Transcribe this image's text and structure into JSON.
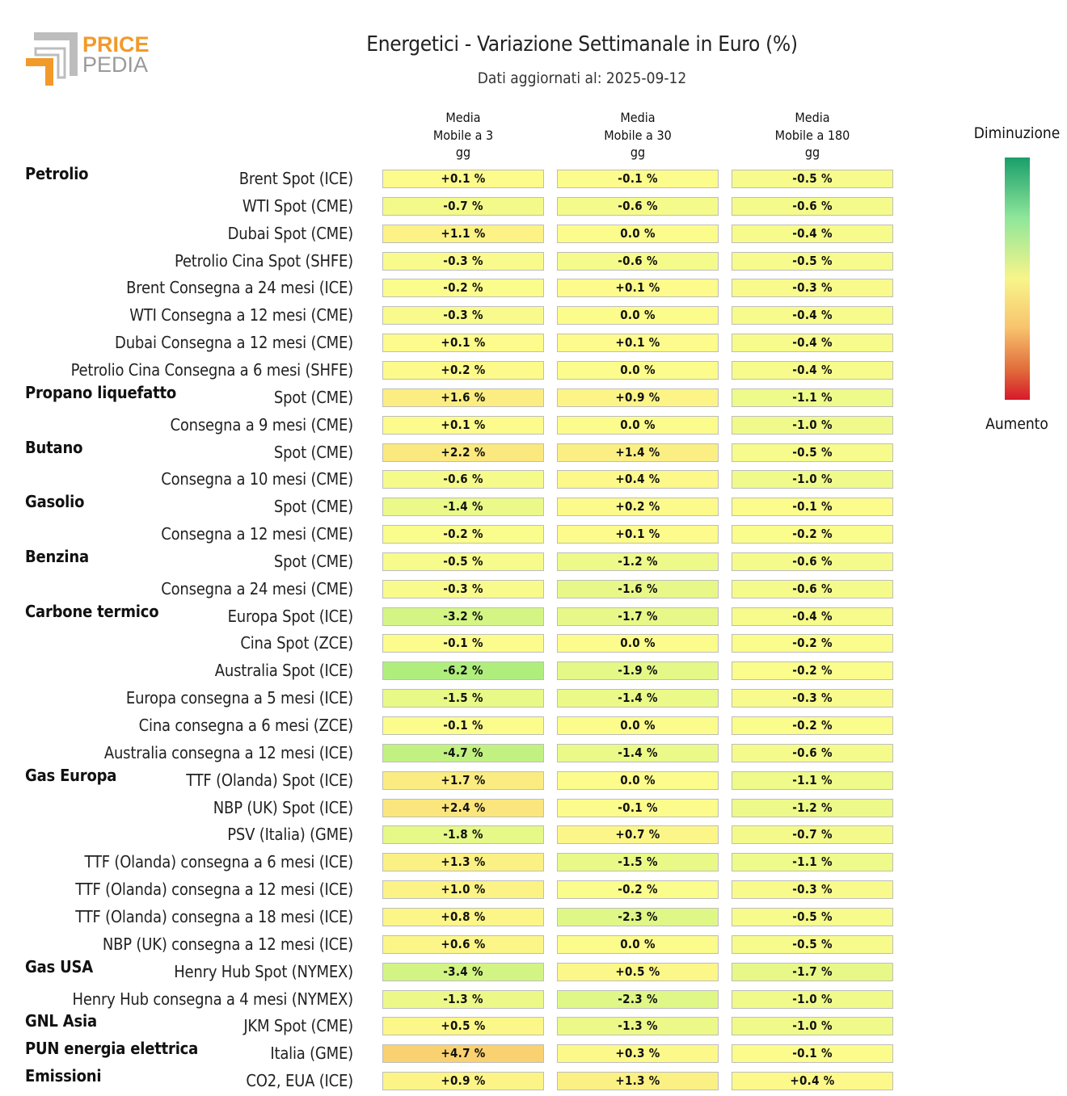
{
  "logo": {
    "line1": "PRICE",
    "line2": "PEDIA",
    "colors": {
      "orange": "#f19a2a",
      "gray": "#999999"
    }
  },
  "chart_data": {
    "type": "table",
    "title": "Energetici - Variazione Settimanale in Euro (%)",
    "subtitle": "Dati aggiornati al: 2025-09-12",
    "columns": [
      "Media\nMobile a 3\ngg",
      "Media\nMobile a 30\ngg",
      "Media\nMobile a 180\ngg"
    ],
    "legend": {
      "top": "Diminuzione",
      "bottom": "Aumento",
      "colors": [
        "#1a9e6a",
        "#8fe69a",
        "#f7f58a",
        "#f8c46e",
        "#e06a3a",
        "#d7192a"
      ]
    },
    "rows": [
      {
        "group": "Petrolio",
        "label": "Brent Spot (ICE)",
        "values": [
          0.1,
          -0.1,
          -0.5
        ]
      },
      {
        "group": "",
        "label": "WTI Spot (CME)",
        "values": [
          -0.7,
          -0.6,
          -0.6
        ]
      },
      {
        "group": "",
        "label": "Dubai Spot (CME)",
        "values": [
          1.1,
          0.0,
          -0.4
        ]
      },
      {
        "group": "",
        "label": "Petrolio Cina Spot (SHFE)",
        "values": [
          -0.3,
          -0.6,
          -0.5
        ]
      },
      {
        "group": "",
        "label": "Brent Consegna a 24 mesi (ICE)",
        "values": [
          -0.2,
          0.1,
          -0.3
        ]
      },
      {
        "group": "",
        "label": "WTI Consegna a 12 mesi (CME)",
        "values": [
          -0.3,
          0.0,
          -0.4
        ]
      },
      {
        "group": "",
        "label": "Dubai Consegna a 12 mesi (CME)",
        "values": [
          0.1,
          0.1,
          -0.4
        ]
      },
      {
        "group": "",
        "label": "Petrolio Cina Consegna a 6 mesi (SHFE)",
        "values": [
          0.2,
          0.0,
          -0.4
        ]
      },
      {
        "group": "Propano liquefatto",
        "label": "Spot (CME)",
        "values": [
          1.6,
          0.9,
          -1.1
        ]
      },
      {
        "group": "",
        "label": "Consegna a 9 mesi (CME)",
        "values": [
          0.1,
          0.0,
          -1.0
        ]
      },
      {
        "group": "Butano",
        "label": "Spot (CME)",
        "values": [
          2.2,
          1.4,
          -0.5
        ]
      },
      {
        "group": "",
        "label": "Consegna a 10 mesi (CME)",
        "values": [
          -0.6,
          0.4,
          -1.0
        ]
      },
      {
        "group": "Gasolio",
        "label": "Spot (CME)",
        "values": [
          -1.4,
          0.2,
          -0.1
        ]
      },
      {
        "group": "",
        "label": "Consegna a 12 mesi (CME)",
        "values": [
          -0.2,
          0.1,
          -0.2
        ]
      },
      {
        "group": "Benzina",
        "label": "Spot (CME)",
        "values": [
          -0.5,
          -1.2,
          -0.6
        ]
      },
      {
        "group": "",
        "label": "Consegna a 24 mesi (CME)",
        "values": [
          -0.3,
          -1.6,
          -0.6
        ]
      },
      {
        "group": "Carbone termico",
        "label": "Europa Spot (ICE)",
        "values": [
          -3.2,
          -1.7,
          -0.4
        ]
      },
      {
        "group": "",
        "label": "Cina Spot (ZCE)",
        "values": [
          -0.1,
          0.0,
          -0.2
        ]
      },
      {
        "group": "",
        "label": "Australia Spot (ICE)",
        "values": [
          -6.2,
          -1.9,
          -0.2
        ]
      },
      {
        "group": "",
        "label": "Europa consegna a 5 mesi (ICE)",
        "values": [
          -1.5,
          -1.4,
          -0.3
        ]
      },
      {
        "group": "",
        "label": "Cina consegna a 6 mesi (ZCE)",
        "values": [
          -0.1,
          0.0,
          -0.2
        ]
      },
      {
        "group": "",
        "label": "Australia consegna a 12 mesi (ICE)",
        "values": [
          -4.7,
          -1.4,
          -0.6
        ]
      },
      {
        "group": "Gas Europa",
        "label": "TTF (Olanda) Spot (ICE)",
        "values": [
          1.7,
          0.0,
          -1.1
        ]
      },
      {
        "group": "",
        "label": "NBP (UK) Spot (ICE)",
        "values": [
          2.4,
          -0.1,
          -1.2
        ]
      },
      {
        "group": "",
        "label": "PSV (Italia) (GME)",
        "values": [
          -1.8,
          0.7,
          -0.7
        ]
      },
      {
        "group": "",
        "label": "TTF (Olanda) consegna a 6 mesi (ICE)",
        "values": [
          1.3,
          -1.5,
          -1.1
        ]
      },
      {
        "group": "",
        "label": "TTF (Olanda) consegna a 12 mesi (ICE)",
        "values": [
          1.0,
          -0.2,
          -0.3
        ]
      },
      {
        "group": "",
        "label": "TTF (Olanda) consegna a 18 mesi (ICE)",
        "values": [
          0.8,
          -2.3,
          -0.5
        ]
      },
      {
        "group": "",
        "label": "NBP (UK) consegna a 12 mesi (ICE)",
        "values": [
          0.6,
          0.0,
          -0.5
        ]
      },
      {
        "group": "Gas USA",
        "label": "Henry Hub Spot (NYMEX)",
        "values": [
          -3.4,
          0.5,
          -1.7
        ]
      },
      {
        "group": "",
        "label": "Henry Hub consegna a 4 mesi (NYMEX)",
        "values": [
          -1.3,
          -2.3,
          -1.0
        ]
      },
      {
        "group": "GNL Asia",
        "label": "JKM Spot (CME)",
        "values": [
          0.5,
          -1.3,
          -1.0
        ]
      },
      {
        "group": "PUN energia elettrica",
        "label": "Italia (GME)",
        "values": [
          4.7,
          0.3,
          -0.1
        ]
      },
      {
        "group": "Emissioni",
        "label": "CO2, EUA (ICE)",
        "values": [
          0.9,
          1.3,
          0.4
        ]
      }
    ]
  }
}
